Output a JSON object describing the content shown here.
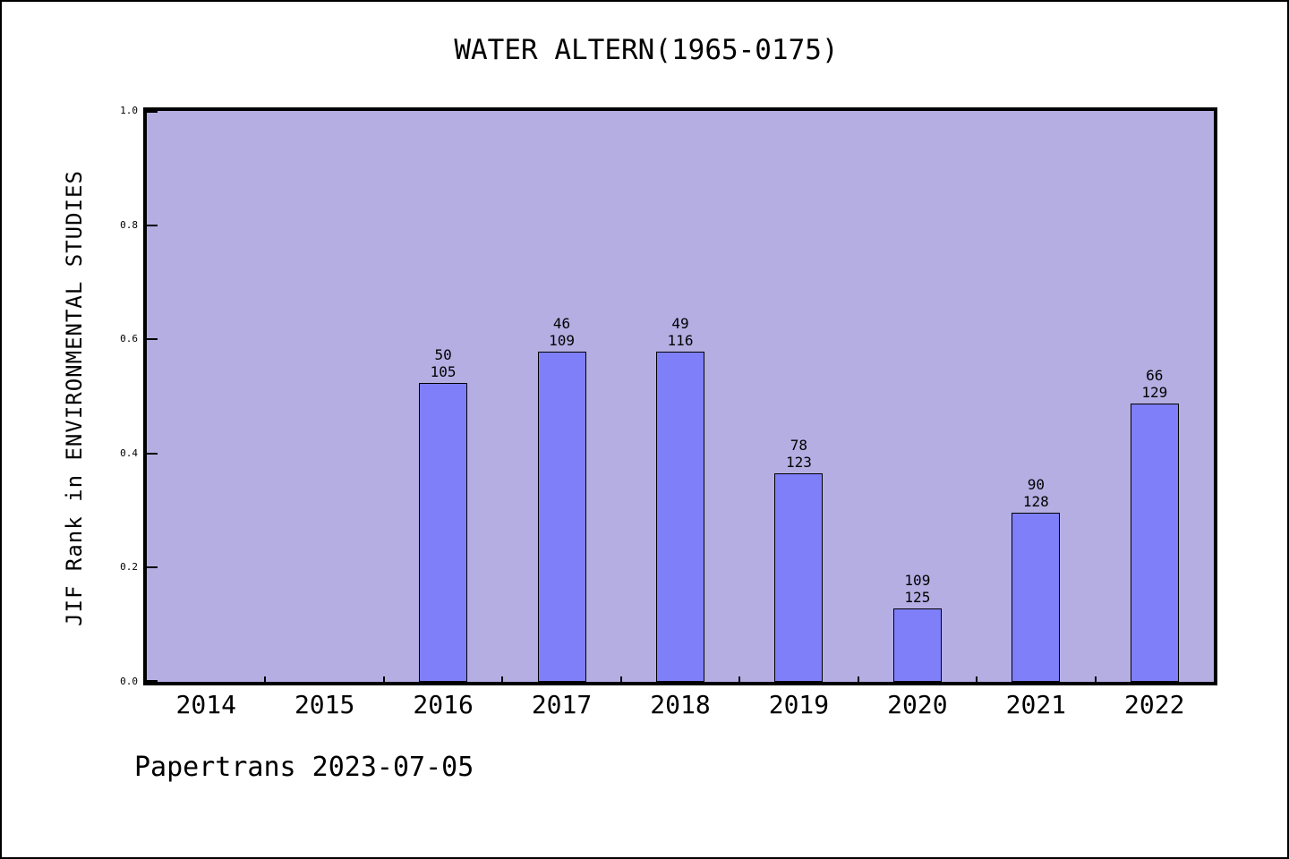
{
  "title": "WATER ALTERN(1965-0175)",
  "footer": "Papertrans 2023-07-05",
  "colors": {
    "page_bg": "#ffffff",
    "plot_bg": "#b5aee3",
    "bar_fill": "#7f7ffa",
    "bar_border": "#000000",
    "axis": "#000000",
    "text": "#000000"
  },
  "chart_data": {
    "type": "bar",
    "title": "WATER ALTERN(1965-0175)",
    "xlabel": "",
    "ylabel": "JIF Rank in ENVIRONMENTAL STUDIES",
    "ylim": [
      0.0,
      1.0
    ],
    "grid": false,
    "legend": "none",
    "yticks": [
      "0.0",
      "0.2",
      "0.4",
      "0.6",
      "0.8",
      "1.0"
    ],
    "categories": [
      "2014",
      "2015",
      "2016",
      "2017",
      "2018",
      "2019",
      "2020",
      "2021",
      "2022"
    ],
    "bars": [
      {
        "year": "2016",
        "rank": 50,
        "total": 105,
        "value": 0.524
      },
      {
        "year": "2017",
        "rank": 46,
        "total": 109,
        "value": 0.578
      },
      {
        "year": "2018",
        "rank": 49,
        "total": 116,
        "value": 0.578
      },
      {
        "year": "2019",
        "rank": 78,
        "total": 123,
        "value": 0.366
      },
      {
        "year": "2020",
        "rank": 109,
        "total": 125,
        "value": 0.128
      },
      {
        "year": "2021",
        "rank": 90,
        "total": 128,
        "value": 0.297
      },
      {
        "year": "2022",
        "rank": 66,
        "total": 129,
        "value": 0.488
      }
    ]
  }
}
